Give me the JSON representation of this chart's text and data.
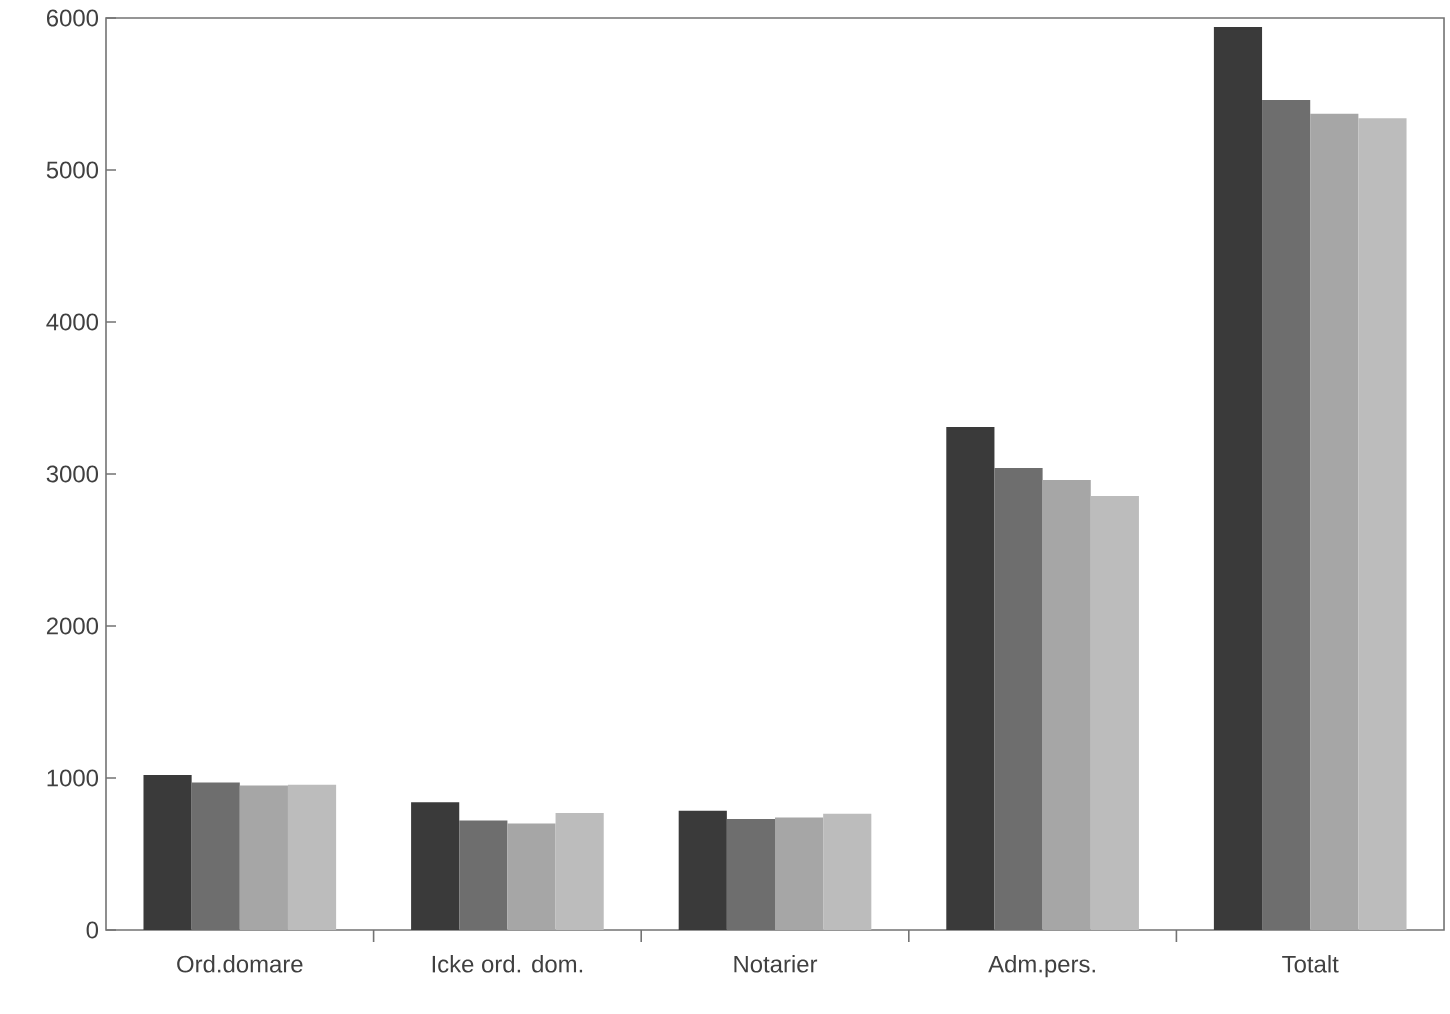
{
  "chart_data": {
    "type": "bar",
    "categories": [
      "Ord.domare",
      "Icke ord. dom.",
      "Notarier",
      "Adm.pers.",
      "Totalt"
    ],
    "series": [
      {
        "color": "#3a3a3a",
        "values": [
          1020,
          840,
          785,
          3310,
          5940
        ]
      },
      {
        "color": "#6e6e6e",
        "values": [
          970,
          720,
          730,
          3040,
          5460
        ]
      },
      {
        "color": "#a6a6a6",
        "values": [
          950,
          700,
          740,
          2960,
          5370
        ]
      },
      {
        "color": "#bcbcbc",
        "values": [
          955,
          770,
          765,
          2855,
          5340
        ]
      }
    ],
    "ylim": [
      0,
      6000
    ],
    "yticks": [
      0,
      1000,
      2000,
      3000,
      4000,
      5000,
      6000
    ]
  }
}
